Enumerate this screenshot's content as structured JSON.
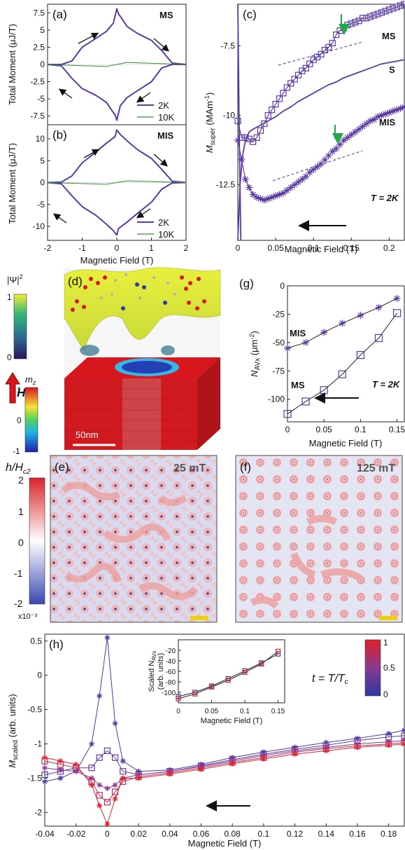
{
  "colors": {
    "purple": "#5b3aa3",
    "green": "#3a8a3a",
    "dash": "#3a3aa8",
    "arrow_green": "#22a84a"
  },
  "panel_labels": {
    "a": "(a)",
    "b": "(b)",
    "c": "(c)",
    "d": "(d)",
    "e": "(e)",
    "f": "(f)",
    "g": "(g)",
    "h": "(h)"
  },
  "panel_a": {
    "corner_tag": "MS",
    "ylabel": "Total Moment (μJ/T)",
    "legend": [
      "2K",
      "10K"
    ]
  },
  "panel_b": {
    "corner_tag": "MIS",
    "ylabel": "Total Moment (μJ/T)",
    "xlabel": "Magnetic Field (T)",
    "legend": [
      "2K",
      "10K"
    ]
  },
  "panel_c": {
    "ylabel_main": "M",
    "ylabel_sub": "super",
    "ylabel_unit": " (MAm",
    "ylabel_exp": "-1",
    "ylabel_close": ")",
    "xlabel": "Magnetic Field (T)",
    "series_tags": [
      "MS",
      "S",
      "MIS"
    ],
    "temp_tag": "T = 2K"
  },
  "panel_d": {
    "psi_label": "|Ψ|",
    "psi_exp": "2",
    "mz_label": "m",
    "mz_sub": "z",
    "h_label": "H",
    "scale_bar": "50nm"
  },
  "panel_e": {
    "field": "25 mT"
  },
  "panel_f": {
    "field": "125 mT"
  },
  "cbar_ef": {
    "label_h": "h/H",
    "label_sub": "c2",
    "ticks": [
      "2",
      "1",
      "0",
      "-1",
      "-2"
    ],
    "exp": "x10⁻³"
  },
  "cbar_d1": {
    "ticks": [
      "1",
      "0"
    ]
  },
  "cbar_d2": {
    "ticks": [
      "1",
      "0",
      "-1"
    ]
  },
  "panel_g": {
    "ylabel_main": "N",
    "ylabel_sub": "AVx",
    "ylabel_unit": " (μm",
    "ylabel_exp": "-2",
    "ylabel_close": ")",
    "xlabel": "Magnetic Field (T)",
    "series_tags": [
      "MIS",
      "MS"
    ],
    "temp_tag": "T = 2K"
  },
  "panel_h": {
    "ylabel_main": "M",
    "ylabel_sub": "scaled",
    "ylabel_unit": " (arb. units)",
    "xlabel": "Magnetic Field (T)",
    "t_label": "t = T/T",
    "t_sub": "c",
    "cbar_ticks": [
      "1",
      "0.5",
      "0"
    ],
    "inset": {
      "ylabel1": "Scaled N",
      "ylabel_sub": "AVx",
      "ylabel2": "(arb. units)",
      "xlabel": "Magnetic Field (T)"
    }
  },
  "chart_data": [
    {
      "type": "line",
      "panel": "a",
      "xlim": [
        -2,
        2
      ],
      "ylim": [
        -8.75,
        8.75
      ],
      "yticks": [
        "7.5",
        "5",
        "2.5",
        "0",
        "-2.5",
        "-5",
        "-7.5"
      ],
      "series": [
        {
          "name": "2K",
          "x": [
            -2,
            -1.6,
            -1.3,
            -1.0,
            -0.6,
            -0.3,
            -0.1,
            0,
            0.05,
            0.1,
            0.3,
            0.6,
            1.0,
            1.3,
            1.6,
            2
          ],
          "y": [
            0,
            0,
            0.5,
            2.5,
            3.8,
            4.8,
            6.0,
            8.1,
            7.3,
            7.0,
            5.5,
            4.5,
            3.5,
            2.0,
            0.2,
            0
          ]
        },
        {
          "name": "2K",
          "x": [
            2,
            1.6,
            1.3,
            1.0,
            0.6,
            0.3,
            0.1,
            0,
            -0.05,
            -0.1,
            -0.3,
            -0.6,
            -1.0,
            -1.3,
            -1.6,
            -2
          ],
          "y": [
            0,
            0,
            -0.5,
            -2.5,
            -3.8,
            -4.8,
            -6.0,
            -8.1,
            -7.3,
            -7.0,
            -5.5,
            -4.5,
            -3.5,
            -2.0,
            -0.2,
            0
          ]
        },
        {
          "name": "10K",
          "x": [
            -2,
            -0.3,
            0,
            0.3,
            2
          ],
          "y": [
            0,
            -0.3,
            0,
            0.3,
            0
          ]
        }
      ]
    },
    {
      "type": "line",
      "panel": "b",
      "xlim": [
        -2,
        2
      ],
      "ylim": [
        -13.2,
        13.2
      ],
      "xticks": [
        "-2",
        "-1",
        "0",
        "1",
        "2"
      ],
      "yticks": [
        "10",
        "5",
        "0",
        "-5",
        "-10"
      ],
      "series": [
        {
          "name": "2K",
          "x": [
            -2,
            -1.6,
            -1.3,
            -1.0,
            -0.6,
            -0.3,
            -0.05,
            0,
            0.05,
            0.1,
            0.3,
            0.6,
            1.0,
            1.3,
            1.6,
            2
          ],
          "y": [
            0,
            0.1,
            1.5,
            4.5,
            7.0,
            9.0,
            10.5,
            12.0,
            11.5,
            11.0,
            9.5,
            7.5,
            5.5,
            3.0,
            0.3,
            0
          ]
        },
        {
          "name": "2K",
          "x": [
            2,
            1.6,
            1.3,
            1.0,
            0.6,
            0.3,
            0.05,
            0,
            -0.05,
            -0.1,
            -0.3,
            -0.6,
            -1.0,
            -1.3,
            -1.6,
            -2
          ],
          "y": [
            0,
            -0.1,
            -1.5,
            -4.5,
            -7.0,
            -9.0,
            -10.5,
            -12.0,
            -11.5,
            -11.0,
            -9.5,
            -7.5,
            -5.5,
            -3.0,
            -0.3,
            0
          ]
        },
        {
          "name": "10K",
          "x": [
            -2,
            -0.3,
            0,
            0.3,
            2
          ],
          "y": [
            0,
            -0.4,
            0,
            0.4,
            0
          ]
        }
      ]
    },
    {
      "type": "line",
      "panel": "c",
      "xlim": [
        0,
        0.22
      ],
      "ylim": [
        -14.5,
        -6.0
      ],
      "xticks": [
        "0",
        "0.05",
        "0.1",
        "0.15",
        "0.2"
      ],
      "yticks": [
        "-7.5",
        "-10",
        "-12.5"
      ],
      "series": [
        {
          "name": "MS",
          "x": [
            0.0,
            0.005,
            0.01,
            0.015,
            0.02,
            0.025,
            0.03,
            0.035,
            0.04,
            0.045,
            0.05,
            0.055,
            0.06,
            0.065,
            0.07,
            0.075,
            0.08,
            0.085,
            0.09,
            0.095,
            0.1,
            0.105,
            0.11,
            0.115,
            0.12,
            0.125,
            0.13,
            0.135,
            0.14,
            0.145,
            0.15,
            0.155,
            0.16,
            0.165,
            0.17,
            0.175,
            0.18,
            0.185,
            0.19,
            0.195,
            0.2,
            0.205,
            0.21,
            0.215,
            0.22
          ],
          "y": [
            -10.2,
            -10.8,
            -10.8,
            -10.85,
            -10.95,
            -10.8,
            -10.55,
            -10.3,
            -10.0,
            -9.8,
            -9.6,
            -9.4,
            -9.2,
            -9.0,
            -8.85,
            -8.7,
            -8.55,
            -8.4,
            -8.3,
            -8.15,
            -8.0,
            -7.9,
            -7.8,
            -7.65,
            -7.55,
            -7.4,
            -7.1,
            -6.95,
            -6.85,
            -6.75,
            -6.7,
            -6.65,
            -6.6,
            -6.5,
            -6.5,
            -6.45,
            -6.4,
            -6.35,
            -6.3,
            -6.25,
            -6.2,
            -6.15,
            -6.1,
            -6.05,
            -6.0
          ]
        },
        {
          "name": "MIS",
          "x": [
            0.0,
            0.005,
            0.01,
            0.015,
            0.02,
            0.025,
            0.03,
            0.035,
            0.04,
            0.045,
            0.05,
            0.055,
            0.06,
            0.065,
            0.07,
            0.075,
            0.08,
            0.085,
            0.09,
            0.095,
            0.1,
            0.105,
            0.11,
            0.115,
            0.12,
            0.125,
            0.13,
            0.135,
            0.14,
            0.145,
            0.15,
            0.155,
            0.16,
            0.165,
            0.17,
            0.175,
            0.18,
            0.185,
            0.19,
            0.195,
            0.2,
            0.205,
            0.21,
            0.215,
            0.22
          ],
          "y": [
            -10.9,
            -11.6,
            -12.3,
            -12.6,
            -12.85,
            -12.95,
            -13.0,
            -13.05,
            -13.0,
            -12.95,
            -12.9,
            -12.85,
            -12.8,
            -12.7,
            -12.6,
            -12.5,
            -12.4,
            -12.3,
            -12.2,
            -12.05,
            -11.95,
            -11.85,
            -11.75,
            -11.6,
            -11.45,
            -11.3,
            -11.2,
            -11.05,
            -10.9,
            -10.8,
            -10.7,
            -10.6,
            -10.5,
            -10.4,
            -10.3,
            -10.2,
            -10.15,
            -10.05,
            -10.0,
            -9.95,
            -9.9,
            -9.85,
            -9.8,
            -9.75,
            -9.7
          ]
        },
        {
          "name": "S",
          "x": [
            0.0,
            0.003,
            0.006,
            0.01,
            0.015,
            0.02,
            0.03,
            0.04,
            0.05,
            0.06,
            0.07,
            0.08,
            0.09,
            0.1,
            0.11,
            0.12,
            0.13,
            0.14,
            0.15,
            0.16,
            0.17,
            0.18,
            0.19,
            0.2,
            0.21,
            0.22
          ],
          "y": [
            -14.5,
            -12.5,
            -11.5,
            -10.9,
            -10.6,
            -10.5,
            -10.35,
            -10.2,
            -10.05,
            -9.85,
            -9.7,
            -9.5,
            -9.35,
            -9.2,
            -9.05,
            -8.9,
            -8.8,
            -8.65,
            -8.55,
            -8.45,
            -8.35,
            -8.25,
            -8.15,
            -8.1,
            -8.05,
            -8.0
          ]
        },
        {
          "name": "S-low",
          "x": [
            0.0,
            0.001,
            0.002,
            0.004
          ],
          "y": [
            -6.0,
            -8.5,
            -11.0,
            -14.5
          ]
        }
      ]
    },
    {
      "type": "line",
      "panel": "g",
      "xlim": [
        0,
        0.16
      ],
      "ylim": [
        -120,
        0
      ],
      "xticks": [
        "0",
        "0.05",
        "0.1",
        "0.15"
      ],
      "yticks": [
        "0",
        "-25",
        "-50",
        "-75",
        "-100"
      ],
      "series": [
        {
          "name": "MIS",
          "x": [
            0,
            0.025,
            0.05,
            0.075,
            0.1,
            0.125,
            0.15
          ],
          "y": [
            -55,
            -50,
            -41,
            -33,
            -26,
            -19,
            -11
          ]
        },
        {
          "name": "MS",
          "x": [
            0,
            0.025,
            0.05,
            0.075,
            0.1,
            0.125,
            0.15
          ],
          "y": [
            -113,
            -102,
            -92,
            -78,
            -61,
            -46,
            -24
          ]
        }
      ]
    },
    {
      "type": "line",
      "panel": "h",
      "xlim": [
        -0.04,
        0.19
      ],
      "ylim": [
        -2.2,
        0.6
      ],
      "xticks": [
        "-0.04",
        "-0.02",
        "0",
        "0.02",
        "0.04",
        "0.06",
        "0.08",
        "0.1",
        "0.12",
        "0.14",
        "0.16",
        "0.18"
      ],
      "yticks": [
        "0.5",
        "0",
        "-0.5",
        "-1",
        "-1.5",
        "-2"
      ],
      "series": [
        {
          "name": "t0",
          "x": [
            -0.04,
            -0.03,
            -0.02,
            -0.01,
            -0.005,
            0,
            0.005,
            0.01,
            0.02,
            0.04,
            0.06,
            0.08,
            0.1,
            0.12,
            0.14,
            0.16,
            0.18,
            0.19
          ],
          "y": [
            -1.55,
            -1.5,
            -1.4,
            -1.0,
            -0.3,
            0.55,
            -0.7,
            -1.25,
            -1.4,
            -1.38,
            -1.3,
            -1.2,
            -1.12,
            -1.05,
            -0.98,
            -0.92,
            -0.85,
            -0.8
          ]
        },
        {
          "name": "t1",
          "x": [
            -0.04,
            -0.03,
            -0.02,
            -0.01,
            -0.005,
            0,
            0.005,
            0.01,
            0.02,
            0.04,
            0.06,
            0.08,
            0.1,
            0.12,
            0.14,
            0.16,
            0.18,
            0.19
          ],
          "y": [
            -1.45,
            -1.4,
            -1.35,
            -1.35,
            -1.2,
            -1.1,
            -1.2,
            -1.4,
            -1.45,
            -1.4,
            -1.32,
            -1.23,
            -1.15,
            -1.08,
            -1.02,
            -0.95,
            -0.9,
            -0.88
          ]
        },
        {
          "name": "t2",
          "x": [
            -0.04,
            -0.03,
            -0.02,
            -0.01,
            -0.005,
            0,
            0.005,
            0.01,
            0.02,
            0.04,
            0.06,
            0.08,
            0.1,
            0.12,
            0.14,
            0.16,
            0.18,
            0.19
          ],
          "y": [
            -1.35,
            -1.38,
            -1.4,
            -1.5,
            -1.6,
            -1.65,
            -1.6,
            -1.5,
            -1.45,
            -1.4,
            -1.33,
            -1.25,
            -1.17,
            -1.1,
            -1.05,
            -1.0,
            -0.97,
            -0.95
          ]
        },
        {
          "name": "t3",
          "x": [
            -0.04,
            -0.03,
            -0.02,
            -0.01,
            -0.005,
            0,
            0.005,
            0.01,
            0.02,
            0.04,
            0.06,
            0.08,
            0.1,
            0.12,
            0.14,
            0.16,
            0.18,
            0.19
          ],
          "y": [
            -1.25,
            -1.3,
            -1.35,
            -1.55,
            -1.75,
            -1.85,
            -1.7,
            -1.55,
            -1.48,
            -1.42,
            -1.35,
            -1.27,
            -1.2,
            -1.12,
            -1.07,
            -1.03,
            -1.0,
            -0.98
          ]
        },
        {
          "name": "t4",
          "x": [
            -0.04,
            -0.03,
            -0.02,
            -0.01,
            -0.005,
            0,
            0.005,
            0.01,
            0.02,
            0.04,
            0.06,
            0.08,
            0.1,
            0.12,
            0.14,
            0.16,
            0.18,
            0.19
          ],
          "y": [
            -1.2,
            -1.25,
            -1.3,
            -1.6,
            -1.9,
            -2.17,
            -1.8,
            -1.5,
            -1.5,
            -1.44,
            -1.37,
            -1.29,
            -1.22,
            -1.15,
            -1.1,
            -1.05,
            -1.02,
            -1.0
          ]
        }
      ]
    },
    {
      "type": "line",
      "panel": "h-inset",
      "xlim": [
        0,
        0.16
      ],
      "ylim": [
        -120,
        0
      ],
      "xticks": [
        "0",
        "0.05",
        "0.1",
        "0.15"
      ],
      "yticks": [
        "-20",
        "-40",
        "-60",
        "-80",
        "-100"
      ],
      "series": [
        {
          "name": "t0",
          "x": [
            0,
            0.025,
            0.05,
            0.075,
            0.1,
            0.125,
            0.15
          ],
          "y": [
            -108,
            -100,
            -88,
            -74,
            -59,
            -44,
            -27
          ]
        },
        {
          "name": "t4",
          "x": [
            0,
            0.025,
            0.05,
            0.075,
            0.1,
            0.125,
            0.15
          ],
          "y": [
            -112,
            -103,
            -90,
            -77,
            -62,
            -46,
            -22
          ]
        }
      ]
    }
  ]
}
